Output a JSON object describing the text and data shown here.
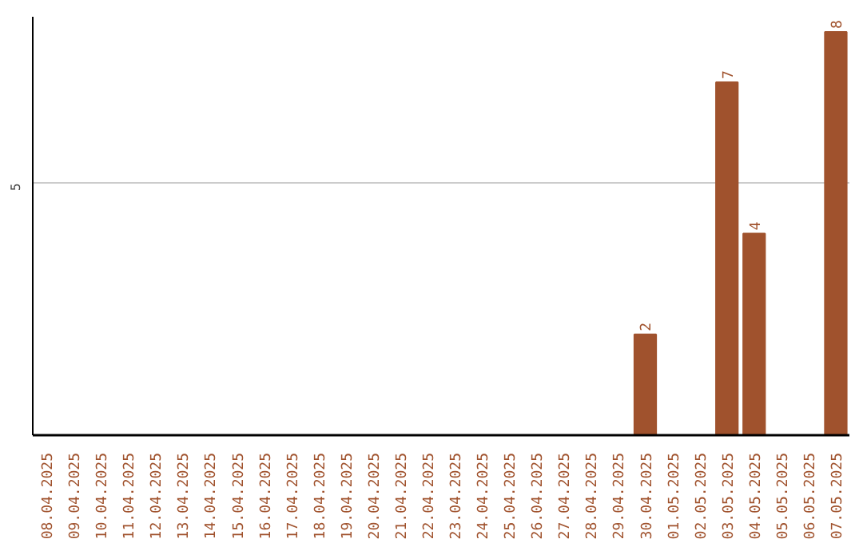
{
  "chart_data": {
    "type": "bar",
    "categories": [
      "08.04.2025",
      "09.04.2025",
      "10.04.2025",
      "11.04.2025",
      "12.04.2025",
      "13.04.2025",
      "14.04.2025",
      "15.04.2025",
      "16.04.2025",
      "17.04.2025",
      "18.04.2025",
      "19.04.2025",
      "20.04.2025",
      "21.04.2025",
      "22.04.2025",
      "23.04.2025",
      "24.04.2025",
      "25.04.2025",
      "26.04.2025",
      "27.04.2025",
      "28.04.2025",
      "29.04.2025",
      "30.04.2025",
      "01.05.2025",
      "02.05.2025",
      "03.05.2025",
      "04.05.2025",
      "05.05.2025",
      "06.05.2025",
      "07.05.2025"
    ],
    "values": [
      null,
      null,
      null,
      null,
      null,
      null,
      null,
      null,
      null,
      null,
      null,
      null,
      null,
      null,
      null,
      null,
      null,
      null,
      null,
      null,
      null,
      null,
      2,
      null,
      null,
      7,
      4,
      null,
      null,
      8
    ],
    "color": "#a0522d",
    "ylim": [
      0,
      8.3
    ],
    "yticks": [
      5
    ],
    "grid": "y",
    "data_labels": true
  }
}
